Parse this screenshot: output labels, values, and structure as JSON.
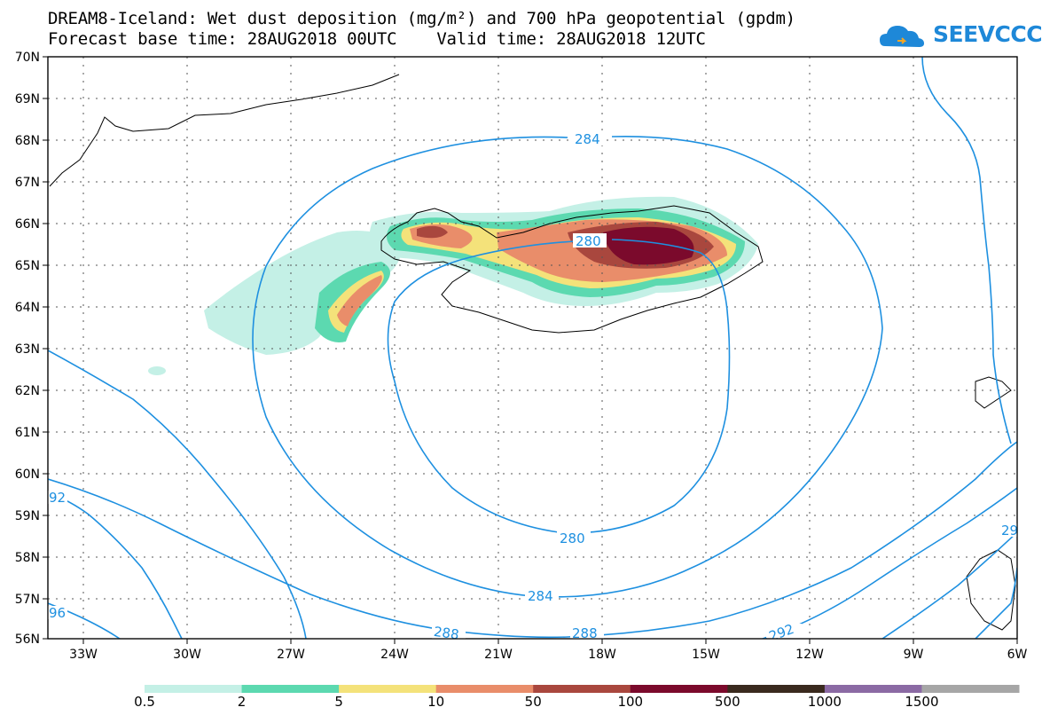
{
  "title_line1": "DREAM8-Iceland: Wet dust deposition (mg/m²) and 700 hPa geopotential (gpdm)",
  "title_line2": "Forecast base time: 28AUG2018 00UTC    Valid time: 28AUG2018 12UTC",
  "logo_text": "SEEVCCC",
  "lat_labels": [
    "70N",
    "69N",
    "68N",
    "67N",
    "66N",
    "65N",
    "64N",
    "63N",
    "62N",
    "61N",
    "60N",
    "59N",
    "58N",
    "57N",
    "56N"
  ],
  "lon_labels": [
    "33W",
    "30W",
    "27W",
    "24W",
    "21W",
    "18W",
    "15W",
    "12W",
    "9W",
    "6W"
  ],
  "contour_labels": [
    "284",
    "280",
    "280",
    "284",
    "288",
    "288",
    "292",
    "92",
    "96",
    "29"
  ],
  "colorbar": {
    "colors": [
      "#c4f0e6",
      "#5cd9b0",
      "#f4e27a",
      "#e98d6a",
      "#a9473e",
      "#7b0a2c",
      "#3a2a1e",
      "#8b6aa4",
      "#a6a6a6"
    ],
    "labels": [
      "0.5",
      "2",
      "5",
      "10",
      "50",
      "100",
      "500",
      "1000",
      "1500"
    ]
  },
  "colors": {
    "contour": "#1e90e0",
    "coast": "#000000",
    "accent": "#1e88d8"
  }
}
